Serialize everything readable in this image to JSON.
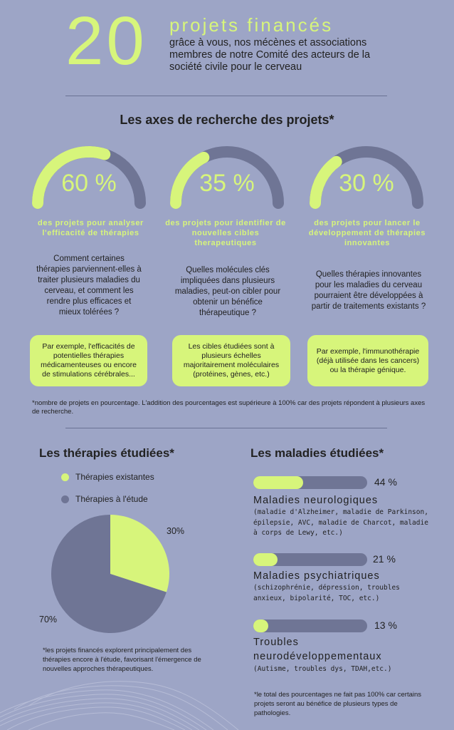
{
  "header": {
    "number": "20",
    "title": "projets financés",
    "description": "grâce à vous, nos mécènes et associations membres de notre Comité des acteurs de la société civile pour le cerveau"
  },
  "axes": {
    "title": "Les axes de recherche des projets*",
    "items": [
      {
        "value": 60,
        "percent_label": "60 %",
        "lead": "des projets pour analyser l'efficacité de thérapies",
        "question": "Comment certaines thérapies parviennent-elles à traiter plusieurs maladies du cerveau, et comment les rendre plus efficaces et mieux tolérées ?",
        "example": "Par exemple, l'efficacités de potentielles thérapies médicamenteuses ou encore de stimulations cérébrales..."
      },
      {
        "value": 35,
        "percent_label": "35 %",
        "lead": "des projets pour identifier  de nouvelles cibles therapeutiques",
        "question": "Quelles molécules clés impliquées dans plusieurs maladies, peut-on cibler pour obtenir un bénéfice thérapeutique ?",
        "example": "Les cibles étudiées sont à plusieurs échelles majoritairement moléculaires (protéines, gènes, etc.)"
      },
      {
        "value": 30,
        "percent_label": "30 %",
        "lead": "des projets pour lancer le développement de thérapies innovantes",
        "question": "Quelles thérapies innovantes pour les maladies du cerveau pourraient être développées à partir de traitements existants ?",
        "example": "Par exemple, l'immunothérapie (déjà utilisée dans les cancers) ou la thérapie génique."
      }
    ],
    "footnote": "*nombre de projets en pourcentage. L'addition des pourcentages est supérieure à 100% car des projets répondent à plusieurs axes de recherche."
  },
  "therapies": {
    "title": "Les thérapies étudiées*",
    "legend": [
      "Thérapies existantes",
      "Thérapies à l'étude"
    ],
    "slices": [
      {
        "name": "Thérapies existantes",
        "value": 30,
        "label": "30%",
        "color": "#d7f57b"
      },
      {
        "name": "Thérapies à l'étude",
        "value": 70,
        "label": "70%",
        "color": "#6f7595"
      }
    ],
    "footnote": "*les projets financés explorent principalement des thérapies encore à l'étude, favorisant l'émergence de nouvelles approches thérapeutiques."
  },
  "diseases": {
    "title": "Les maladies étudiées*",
    "items": [
      {
        "value": 44,
        "label": "44 %",
        "name": "Maladies neurologiques",
        "desc": "(maladie d'Alzheimer, maladie de Parkinson, épilepsie, AVC, maladie de Charcot, maladie à corps de Lewy, etc.)"
      },
      {
        "value": 21,
        "label": "21 %",
        "name": "Maladies psychiatriques",
        "desc": "(schizophrénie, dépression, troubles anxieux, bipolarité, TOC, etc.)"
      },
      {
        "value": 13,
        "label": "13 %",
        "name": "Troubles neurodéveloppementaux",
        "desc": "(Autisme, troubles dys, TDAH,etc.)"
      }
    ],
    "footnote": "*le total des pourcentages ne fait pas 100% car certains projets seront au bénéfice de plusieurs types de pathologies."
  },
  "colors": {
    "accent": "#d7f57b",
    "track": "#6f7595",
    "background": "#9da5c6"
  }
}
